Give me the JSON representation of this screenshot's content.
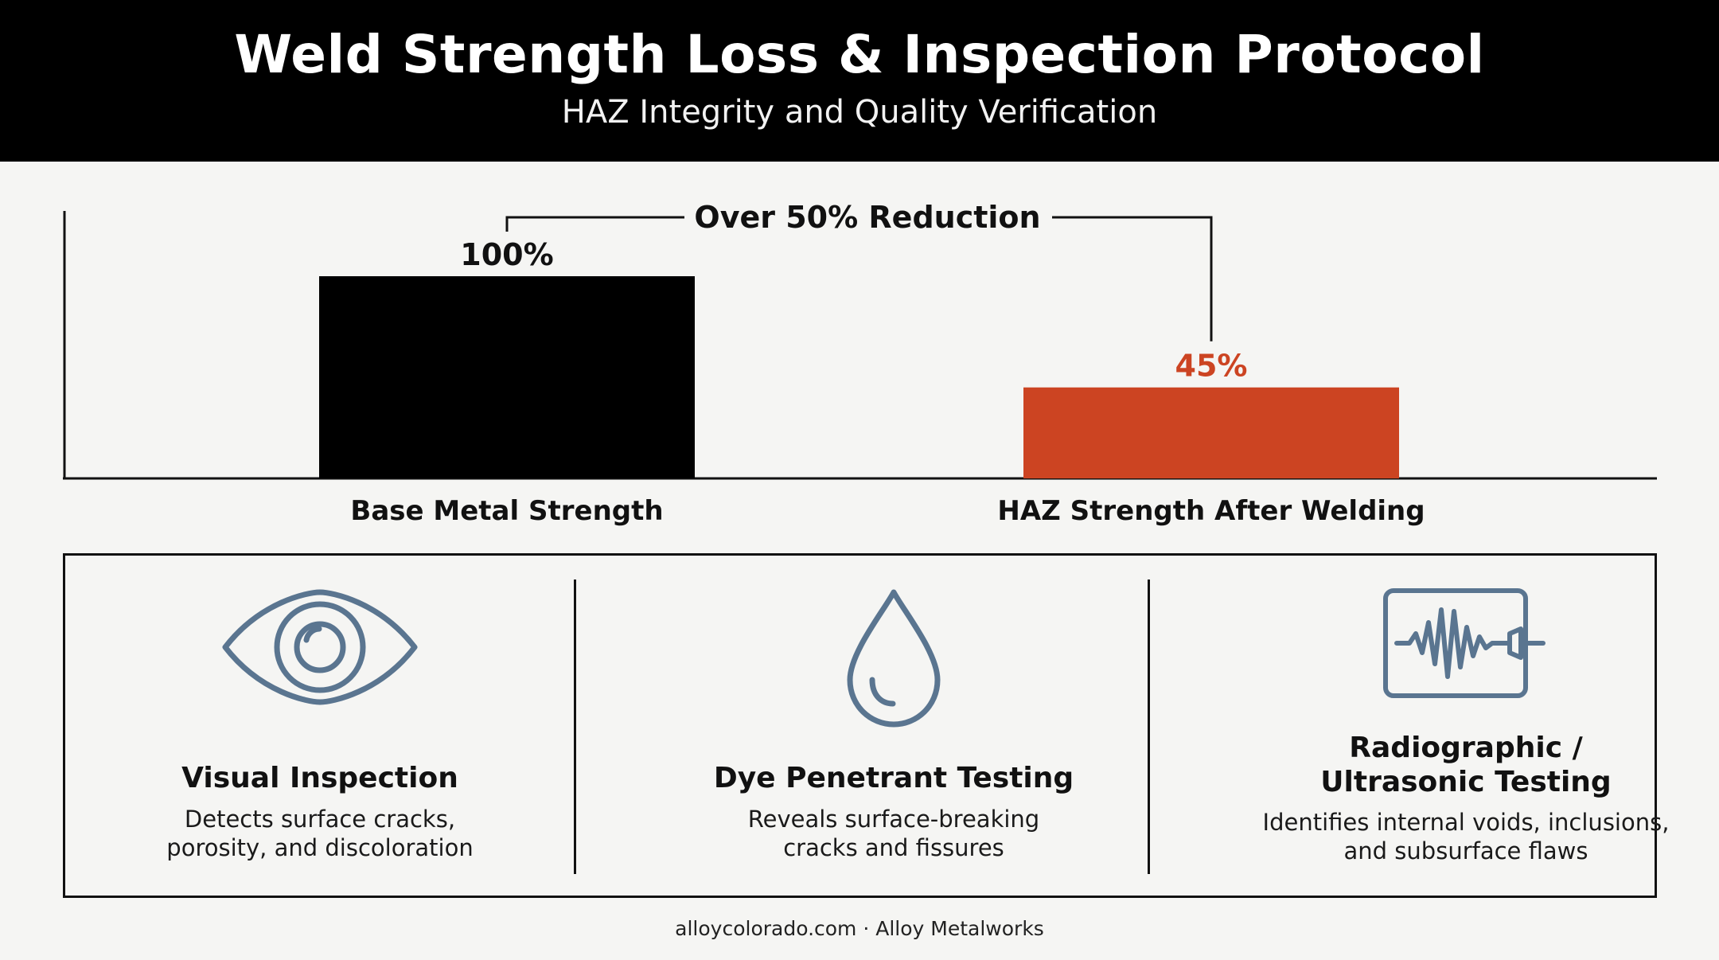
{
  "header": {
    "title": "Weld Strength Loss & Inspection Protocol",
    "subtitle": "HAZ Integrity and Quality Verification"
  },
  "chart_data": {
    "type": "bar",
    "categories": [
      "Base Metal Strength",
      "HAZ Strength After Welding"
    ],
    "values": [
      100,
      45
    ],
    "data_labels": [
      "100%",
      "45%"
    ],
    "colors": [
      "#000000",
      "#cc4422"
    ],
    "annotation": "Over 50% Reduction",
    "ylim": [
      0,
      100
    ],
    "grid": false
  },
  "methods": [
    {
      "icon": "eye-icon",
      "title_lines": [
        "Visual Inspection"
      ],
      "desc_lines": [
        "Detects surface cracks,",
        "porosity, and discoloration"
      ]
    },
    {
      "icon": "droplet-icon",
      "title_lines": [
        "Dye Penetrant Testing"
      ],
      "desc_lines": [
        "Reveals surface-breaking",
        "cracks and fissures"
      ]
    },
    {
      "icon": "waveform-monitor-icon",
      "title_lines": [
        "Radiographic /",
        "Ultrasonic Testing"
      ],
      "desc_lines": [
        "Identifies internal voids, inclusions,",
        "and subsurface flaws"
      ]
    }
  ],
  "icon_color": "#5a7590",
  "footer": {
    "text": "alloycolorado.com · Alloy Metalworks"
  }
}
